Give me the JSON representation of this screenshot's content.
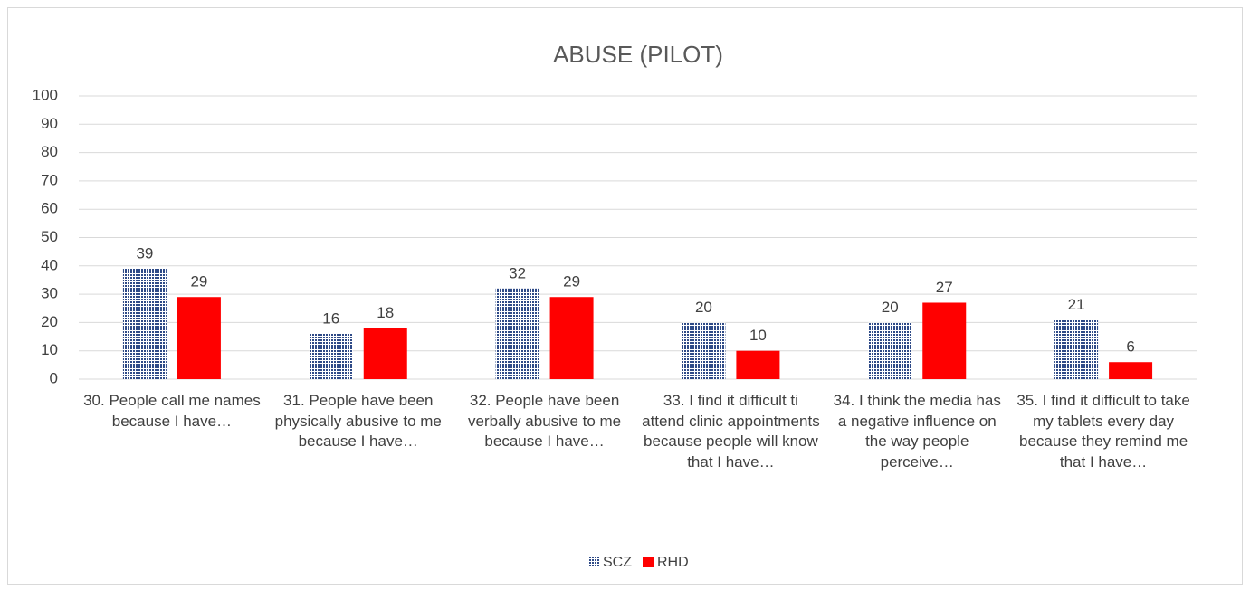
{
  "chart_data": {
    "type": "bar",
    "title": "ABUSE (PILOT)",
    "categories": [
      "30. People call me names because I have…",
      "31. People have been physically abusive to me because I have…",
      "32. People have been verbally abusive to me because I have…",
      "33. I find it difficult ti attend clinic appointments because people will know that I have…",
      "34. I think the media has a negative influence on the way people perceive…",
      "35. I find it difficult to take my tablets every day because they remind me that I have…"
    ],
    "series": [
      {
        "name": "SCZ",
        "color": "#2e4a87",
        "pattern": "dots",
        "values": [
          39,
          16,
          32,
          20,
          20,
          21
        ]
      },
      {
        "name": "RHD",
        "color": "#ff0000",
        "values": [
          29,
          18,
          29,
          10,
          27,
          6
        ]
      }
    ],
    "ylim": [
      0,
      100
    ],
    "yticks": [
      0,
      10,
      20,
      30,
      40,
      50,
      60,
      70,
      80,
      90,
      100
    ],
    "grid": true,
    "legend": "bottom"
  }
}
